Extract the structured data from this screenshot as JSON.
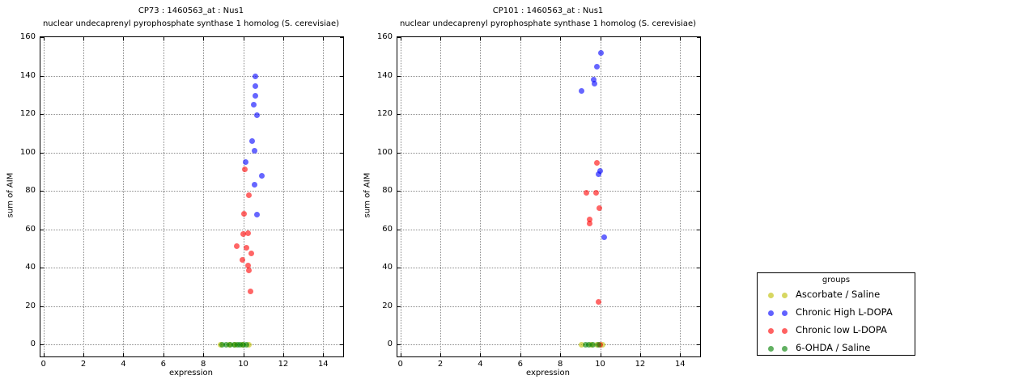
{
  "figure": {
    "background": "#ffffff",
    "accent_colors": {
      "yellow": "#bfbf00",
      "blue": "#0000ff",
      "red": "#ff0000",
      "green": "#008000"
    }
  },
  "legend": {
    "title": "groups",
    "entries": [
      {
        "label": "Ascorbate / Saline",
        "color": "#bfbf00"
      },
      {
        "label": "Chronic High L-DOPA",
        "color": "#0000ff"
      },
      {
        "label": "Chronic low L-DOPA",
        "color": "#ff0000"
      },
      {
        "label": "6-OHDA / Saline",
        "color": "#008000"
      }
    ]
  },
  "chart_data": [
    {
      "type": "scatter",
      "title": "CP73 : 1460563_at : Nus1",
      "subtitle": "nuclear undecaprenyl pyrophosphate synthase 1 homolog (S. cerevisiae)",
      "xlabel": "expression",
      "ylabel": "sum of AIM",
      "xlim": [
        -0.15,
        15
      ],
      "ylim": [
        -6.3,
        160
      ],
      "xticks": [
        0,
        2,
        4,
        6,
        8,
        10,
        12,
        14
      ],
      "yticks": [
        0,
        20,
        40,
        60,
        80,
        100,
        120,
        140,
        160
      ],
      "grid": true,
      "series": [
        {
          "name": "Ascorbate / Saline",
          "color": "#bfbf00",
          "points": [
            [
              8.85,
              0
            ],
            [
              9.3,
              0
            ],
            [
              9.6,
              0
            ],
            [
              9.95,
              0
            ],
            [
              10.3,
              0
            ]
          ]
        },
        {
          "name": "Chronic High L-DOPA",
          "color": "#0000ff",
          "points": [
            [
              10.61,
              139.5
            ],
            [
              10.61,
              134.5
            ],
            [
              10.61,
              129.5
            ],
            [
              10.53,
              125
            ],
            [
              10.68,
              119.5
            ],
            [
              10.45,
              106
            ],
            [
              10.57,
              101
            ],
            [
              10.1,
              95
            ],
            [
              10.91,
              88
            ],
            [
              10.57,
              83
            ],
            [
              10.68,
              67.5
            ]
          ]
        },
        {
          "name": "Chronic low L-DOPA",
          "color": "#ff0000",
          "points": [
            [
              10.06,
              91
            ],
            [
              10.28,
              77.5
            ],
            [
              10.04,
              68
            ],
            [
              10.26,
              58
            ],
            [
              9.98,
              57.5
            ],
            [
              9.68,
              51
            ],
            [
              10.14,
              50.5
            ],
            [
              10.41,
              47.5
            ],
            [
              9.94,
              44
            ],
            [
              10.24,
              41
            ],
            [
              10.3,
              38.5
            ],
            [
              10.35,
              27.5
            ]
          ]
        },
        {
          "name": "6-OHDA / Saline",
          "color": "#008000",
          "points": [
            [
              8.95,
              0
            ],
            [
              9.15,
              0
            ],
            [
              9.35,
              0
            ],
            [
              9.55,
              0
            ],
            [
              9.7,
              0
            ],
            [
              9.85,
              0
            ],
            [
              10.0,
              0
            ],
            [
              10.15,
              0
            ]
          ]
        }
      ]
    },
    {
      "type": "scatter",
      "title": "CP101 : 1460563_at : Nus1",
      "subtitle": "nuclear undecaprenyl pyrophosphate synthase 1 homolog (S. cerevisiae)",
      "xlabel": "expression",
      "ylabel": "sum of AIM",
      "xlim": [
        -0.15,
        15
      ],
      "ylim": [
        -6.3,
        160
      ],
      "xticks": [
        0,
        2,
        4,
        6,
        8,
        10,
        12,
        14
      ],
      "yticks": [
        0,
        20,
        40,
        60,
        80,
        100,
        120,
        140,
        160
      ],
      "grid": true,
      "series": [
        {
          "name": "Ascorbate / Saline",
          "color": "#bfbf00",
          "points": [
            [
              9.05,
              0
            ],
            [
              9.55,
              0
            ],
            [
              9.85,
              0
            ],
            [
              10.12,
              0
            ]
          ]
        },
        {
          "name": "Chronic High L-DOPA",
          "color": "#0000ff",
          "points": [
            [
              10.04,
              152
            ],
            [
              9.83,
              144.5
            ],
            [
              9.68,
              138
            ],
            [
              9.71,
              136
            ],
            [
              9.06,
              132
            ],
            [
              10.01,
              90.5
            ],
            [
              9.92,
              88.5
            ],
            [
              10.18,
              56
            ]
          ]
        },
        {
          "name": "Chronic low L-DOPA",
          "color": "#ff0000",
          "points": [
            [
              9.84,
              94.5
            ],
            [
              9.31,
              79
            ],
            [
              9.79,
              79
            ],
            [
              9.95,
              71
            ],
            [
              9.47,
              65
            ],
            [
              9.47,
              63
            ],
            [
              9.9,
              22
            ],
            [
              10.0,
              0
            ]
          ]
        },
        {
          "name": "6-OHDA / Saline",
          "color": "#008000",
          "points": [
            [
              9.25,
              0
            ],
            [
              9.45,
              0
            ],
            [
              9.65,
              0
            ],
            [
              9.9,
              0
            ]
          ]
        }
      ]
    }
  ]
}
